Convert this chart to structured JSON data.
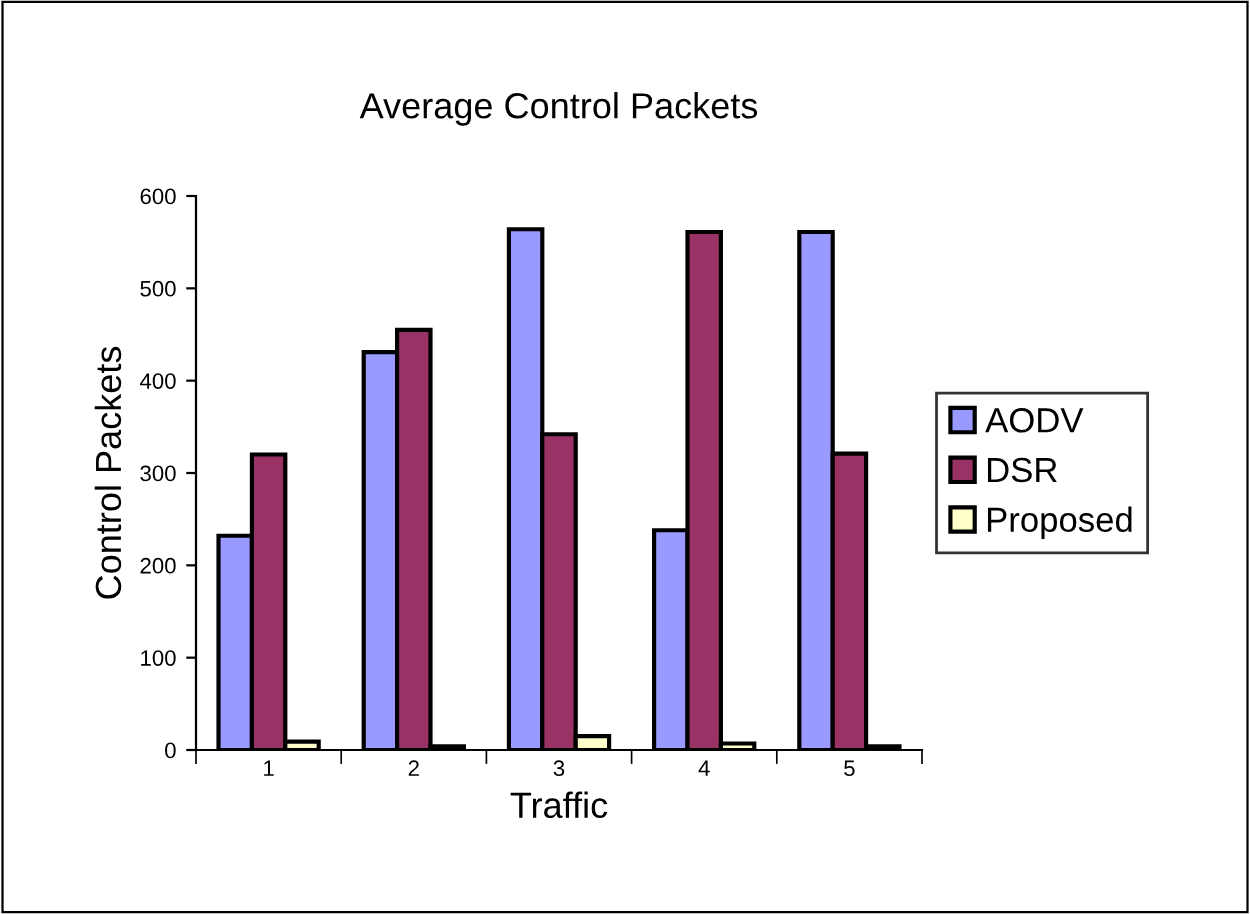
{
  "chart_data": {
    "type": "bar",
    "title": "Average Control Packets",
    "xlabel": "Traffic",
    "ylabel": "Control Packets",
    "categories": [
      "1",
      "2",
      "3",
      "4",
      "5"
    ],
    "series": [
      {
        "name": "AODV",
        "color": "#9999ff",
        "values": [
          232,
          431,
          564,
          238,
          561
        ]
      },
      {
        "name": "DSR",
        "color": "#993366",
        "values": [
          320,
          455,
          342,
          561,
          321
        ]
      },
      {
        "name": "Proposed",
        "color": "#ffffcc",
        "values": [
          9,
          4,
          15,
          7,
          4
        ]
      }
    ],
    "ylim": [
      0,
      600
    ],
    "yticks": [
      0,
      100,
      200,
      300,
      400,
      500,
      600
    ],
    "grid": false,
    "legend": "right"
  }
}
